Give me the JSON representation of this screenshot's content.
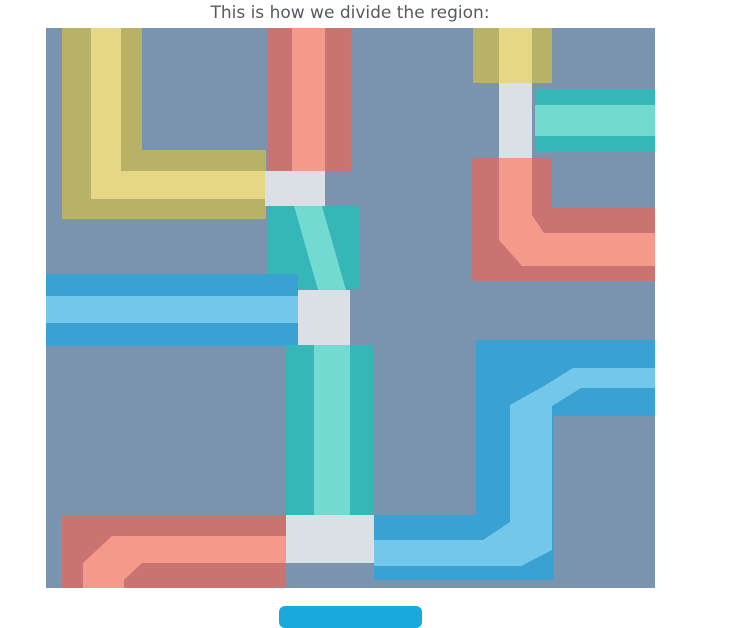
{
  "caption": "This is how we divide the region:",
  "image": {
    "icon": "region-division-illustration",
    "colors": {
      "background": "#7a93ae",
      "yellow_outer": "#b7b266",
      "yellow_inner": "#e6d784",
      "red_outer": "#c97470",
      "red_inner": "#f59a8b",
      "teal_outer": "#35b6b7",
      "teal_inner": "#73dad2",
      "blue_outer": "#3aa2d3",
      "blue_inner": "#73c8ea",
      "junction": "#dbe0e7"
    }
  },
  "button": {
    "label": "",
    "color": "#1aa9dd"
  }
}
